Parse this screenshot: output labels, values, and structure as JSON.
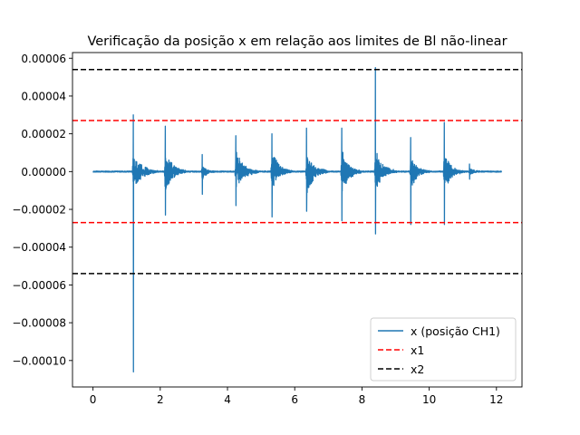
{
  "chart_data": {
    "type": "line",
    "title": "Verificação da posição x em relação aos limites de Bl não-linear",
    "xlabel": "",
    "ylabel": "",
    "xlim": [
      -0.61,
      12.76
    ],
    "ylim": [
      -0.000114,
      6.3e-05
    ],
    "x_ticks": [
      0,
      2,
      4,
      6,
      8,
      10,
      12
    ],
    "x_tick_labels": [
      "0",
      "2",
      "4",
      "6",
      "8",
      "10",
      "12"
    ],
    "y_ticks": [
      -0.0001,
      -8e-05,
      -6e-05,
      -4e-05,
      -2e-05,
      0,
      2e-05,
      4e-05,
      6e-05
    ],
    "y_tick_labels": [
      "−0.00010",
      "−0.00008",
      "−0.00006",
      "−0.00004",
      "−0.00002",
      "0.00000",
      "0.00002",
      "0.00004",
      "0.00006"
    ],
    "grid": false,
    "legend_position": "lower-right",
    "series": [
      {
        "name": "x (posição CH1)",
        "color": "#1f77b4",
        "style": "solid",
        "x_range": [
          0.0,
          12.15
        ],
        "bursts": [
          {
            "t": 1.2,
            "peak_pos": 3e-05,
            "peak_neg": -0.000106,
            "env": 1.1e-05,
            "width": 0.75
          },
          {
            "t": 2.15,
            "peak_pos": 2.4e-05,
            "peak_neg": -2.3e-05,
            "env": 1.3e-05,
            "width": 0.6
          },
          {
            "t": 3.25,
            "peak_pos": 9e-06,
            "peak_neg": -1.2e-05,
            "env": 5e-06,
            "width": 0.35
          },
          {
            "t": 4.25,
            "peak_pos": 1.9e-05,
            "peak_neg": -1.8e-05,
            "env": 1.1e-05,
            "width": 0.7
          },
          {
            "t": 5.32,
            "peak_pos": 2e-05,
            "peak_neg": -2.4e-05,
            "env": 1.2e-05,
            "width": 0.6
          },
          {
            "t": 6.35,
            "peak_pos": 2.3e-05,
            "peak_neg": -2.1e-05,
            "env": 1.2e-05,
            "width": 0.65
          },
          {
            "t": 7.4,
            "peak_pos": 2.3e-05,
            "peak_neg": -2.6e-05,
            "env": 1.3e-05,
            "width": 0.6
          },
          {
            "t": 8.4,
            "peak_pos": 5.5e-05,
            "peak_neg": -3.3e-05,
            "env": 1.2e-05,
            "width": 0.65
          },
          {
            "t": 9.45,
            "peak_pos": 1.8e-05,
            "peak_neg": -2.8e-05,
            "env": 1e-05,
            "width": 0.55
          },
          {
            "t": 10.45,
            "peak_pos": 2.6e-05,
            "peak_neg": -2.8e-05,
            "env": 1.1e-05,
            "width": 0.6
          },
          {
            "t": 11.2,
            "peak_pos": 4e-06,
            "peak_neg": -4e-06,
            "env": 2e-06,
            "width": 0.4
          }
        ]
      },
      {
        "name": "x1",
        "color": "#ff0000",
        "style": "dashed",
        "values": [
          2.7e-05,
          -2.7e-05
        ]
      },
      {
        "name": "x2",
        "color": "#000000",
        "style": "dashed",
        "values": [
          5.4e-05,
          -5.4e-05
        ]
      }
    ]
  }
}
